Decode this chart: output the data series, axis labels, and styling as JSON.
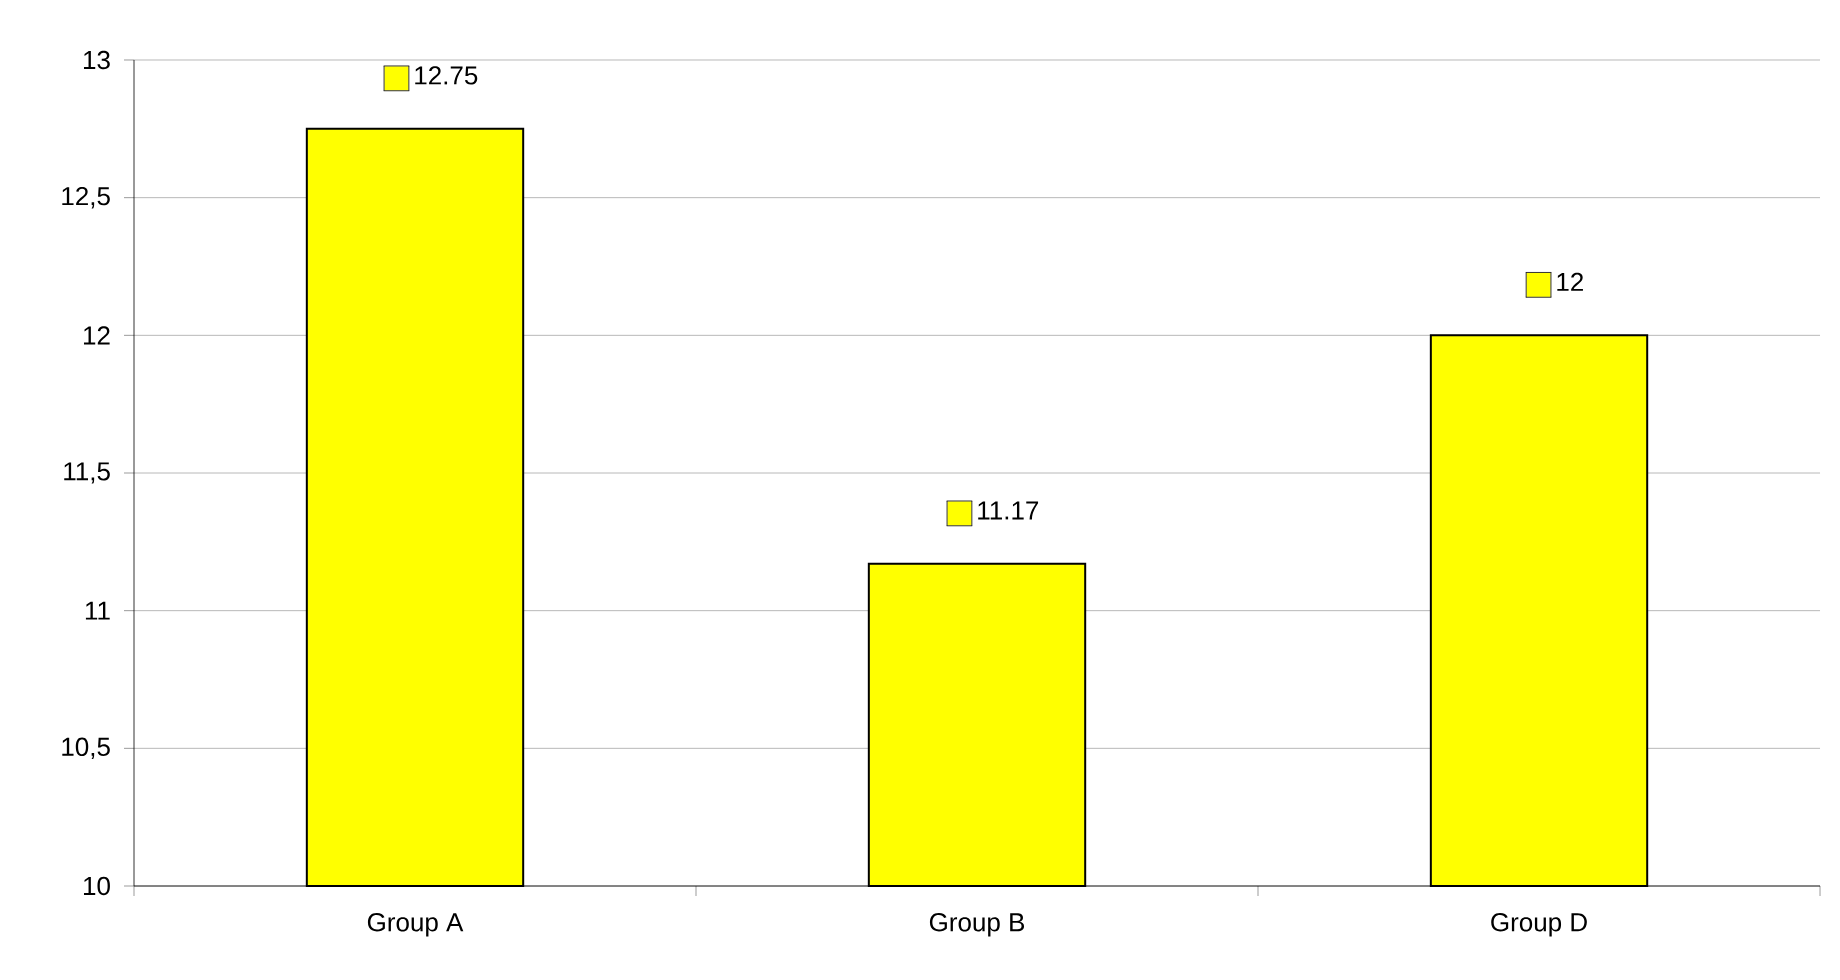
{
  "chart_data": {
    "type": "bar",
    "categories": [
      "Group A",
      "Group B",
      "Group D"
    ],
    "values": [
      12.75,
      11.17,
      12
    ],
    "color": "#ffff00",
    "ylim": [
      10,
      13
    ],
    "yticks": [
      10,
      {
        "value": 10.5,
        "label": "10,5"
      },
      11,
      {
        "value": 11.5,
        "label": "11,5"
      },
      12,
      {
        "value": 12.5,
        "label": "12,5"
      },
      13
    ],
    "grid": "y",
    "data_labels": true
  }
}
